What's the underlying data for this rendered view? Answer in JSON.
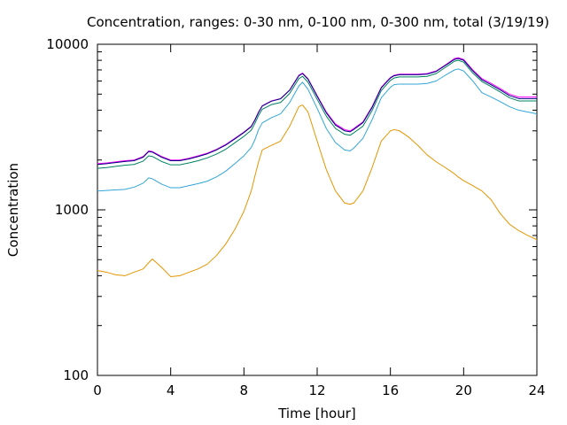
{
  "chart_data": {
    "type": "line",
    "title": "Concentration, ranges: 0-30 nm, 0-100 nm, 0-300 nm, total (3/19/19)",
    "xlabel": "Time [hour]",
    "ylabel": "Concentration",
    "xlim": [
      0,
      24
    ],
    "ylim": [
      100,
      10000
    ],
    "yscale": "log",
    "grid": false,
    "xticks": [
      0,
      4,
      8,
      12,
      16,
      20,
      24
    ],
    "xtick_labels": [
      "0",
      "4",
      "8",
      "12",
      "16",
      "20",
      "24"
    ],
    "yticks": [
      100,
      1000,
      10000
    ],
    "ytick_labels": [
      "100",
      "1000",
      "10000"
    ],
    "x": [
      0,
      0.5,
      1,
      1.5,
      2,
      2.5,
      2.8,
      3,
      3.5,
      4,
      4.5,
      5,
      5.5,
      6,
      6.5,
      7,
      7.5,
      8,
      8.4,
      8.6,
      8.8,
      9,
      9.5,
      10,
      10.5,
      11,
      11.2,
      11.5,
      12,
      12.5,
      13,
      13.5,
      13.8,
      14,
      14.5,
      15,
      15.5,
      16,
      16.2,
      16.5,
      17,
      17.5,
      18,
      18.5,
      19,
      19.5,
      19.7,
      20,
      20.5,
      21,
      21.5,
      22,
      22.5,
      23,
      23.5,
      24
    ],
    "series": [
      {
        "color": "#ff00ff",
        "values": [
          1900,
          1920,
          1950,
          1980,
          2000,
          2100,
          2270,
          2250,
          2100,
          2000,
          2000,
          2050,
          2120,
          2200,
          2320,
          2480,
          2700,
          2950,
          3200,
          3500,
          3900,
          4250,
          4550,
          4700,
          5300,
          6500,
          6700,
          6200,
          4900,
          3900,
          3300,
          3050,
          3000,
          3100,
          3400,
          4200,
          5500,
          6300,
          6500,
          6600,
          6600,
          6600,
          6650,
          6900,
          7500,
          8200,
          8300,
          8100,
          7000,
          6200,
          5800,
          5400,
          5000,
          4800,
          4800,
          4800
        ]
      },
      {
        "color": "#000080",
        "values": [
          1880,
          1900,
          1930,
          1960,
          1980,
          2080,
          2250,
          2230,
          2080,
          1980,
          1980,
          2030,
          2100,
          2180,
          2300,
          2460,
          2680,
          2930,
          3180,
          3480,
          3880,
          4230,
          4530,
          4680,
          5280,
          6450,
          6650,
          6150,
          4850,
          3850,
          3250,
          3000,
          2960,
          3060,
          3360,
          4150,
          5450,
          6250,
          6450,
          6550,
          6550,
          6550,
          6600,
          6850,
          7450,
          8100,
          8200,
          8000,
          6900,
          6100,
          5700,
          5300,
          4900,
          4700,
          4700,
          4700
        ]
      },
      {
        "color": "#008060",
        "values": [
          1780,
          1800,
          1830,
          1860,
          1880,
          1970,
          2120,
          2100,
          1960,
          1870,
          1870,
          1920,
          1980,
          2060,
          2170,
          2320,
          2540,
          2780,
          3030,
          3330,
          3720,
          4050,
          4320,
          4450,
          5050,
          6200,
          6400,
          5900,
          4650,
          3680,
          3100,
          2860,
          2820,
          2920,
          3200,
          3980,
          5250,
          6050,
          6250,
          6350,
          6350,
          6350,
          6400,
          6650,
          7250,
          7900,
          8000,
          7800,
          6700,
          5950,
          5550,
          5150,
          4750,
          4550,
          4550,
          4550
        ]
      },
      {
        "color": "#33a6d9",
        "values": [
          1300,
          1310,
          1320,
          1330,
          1370,
          1450,
          1560,
          1540,
          1430,
          1360,
          1360,
          1400,
          1440,
          1490,
          1580,
          1710,
          1900,
          2120,
          2380,
          2650,
          3050,
          3350,
          3600,
          3800,
          4450,
          5600,
          5900,
          5350,
          4100,
          3100,
          2550,
          2300,
          2270,
          2360,
          2700,
          3500,
          4750,
          5500,
          5700,
          5750,
          5750,
          5750,
          5800,
          6000,
          6500,
          7000,
          7100,
          6900,
          6000,
          5100,
          4800,
          4500,
          4200,
          4000,
          3900,
          3800
        ]
      },
      {
        "color": "#e69500",
        "values": [
          430,
          420,
          405,
          400,
          420,
          440,
          480,
          505,
          450,
          395,
          400,
          420,
          440,
          470,
          530,
          620,
          760,
          980,
          1300,
          1600,
          1950,
          2300,
          2450,
          2600,
          3200,
          4200,
          4300,
          3900,
          2600,
          1750,
          1300,
          1100,
          1080,
          1100,
          1300,
          1800,
          2600,
          3000,
          3050,
          3000,
          2750,
          2450,
          2150,
          1950,
          1800,
          1650,
          1580,
          1500,
          1400,
          1300,
          1150,
          950,
          820,
          750,
          700,
          660
        ]
      }
    ]
  }
}
